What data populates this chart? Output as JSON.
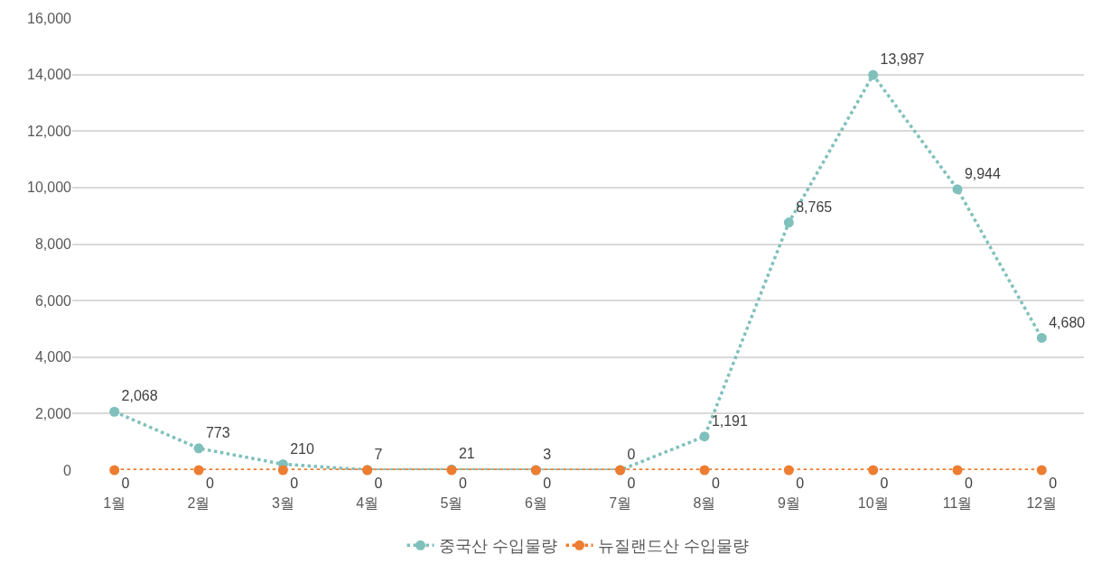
{
  "chart_data": {
    "type": "line",
    "categories": [
      "1월",
      "2월",
      "3월",
      "4월",
      "5월",
      "6월",
      "7월",
      "8월",
      "9월",
      "10월",
      "11월",
      "12월"
    ],
    "series": [
      {
        "name": "중국산 수입물량",
        "color": "#7fc0bc",
        "values": [
          2068,
          773,
          210,
          7,
          21,
          3,
          0,
          1191,
          8765,
          13987,
          9944,
          4680
        ],
        "value_labels": [
          "2,068",
          "773",
          "210",
          "7",
          "21",
          "3",
          "0",
          "1,191",
          "8,765",
          "13,987",
          "9,944",
          "4,680"
        ]
      },
      {
        "name": "뉴질랜드산 수입물량",
        "color": "#ed7d31",
        "values": [
          0,
          0,
          0,
          0,
          0,
          0,
          0,
          0,
          0,
          0,
          0,
          0
        ],
        "value_labels": [
          "0",
          "0",
          "0",
          "0",
          "0",
          "0",
          "0",
          "0",
          "0",
          "0",
          "0",
          "0"
        ]
      }
    ],
    "ylim": [
      0,
      16000
    ],
    "yticks": [
      {
        "value": 0,
        "label": "0"
      },
      {
        "value": 2000,
        "label": "2,000"
      },
      {
        "value": 4000,
        "label": "4,000"
      },
      {
        "value": 6000,
        "label": "6,000"
      },
      {
        "value": 8000,
        "label": "8,000"
      },
      {
        "value": 10000,
        "label": "10,000"
      },
      {
        "value": 12000,
        "label": "12,000"
      },
      {
        "value": 14000,
        "label": "14,000"
      },
      {
        "value": 16000,
        "label": "16,000"
      }
    ],
    "grid": "y",
    "legend": "bottom",
    "marker": "circle",
    "line_style": "dotted"
  }
}
